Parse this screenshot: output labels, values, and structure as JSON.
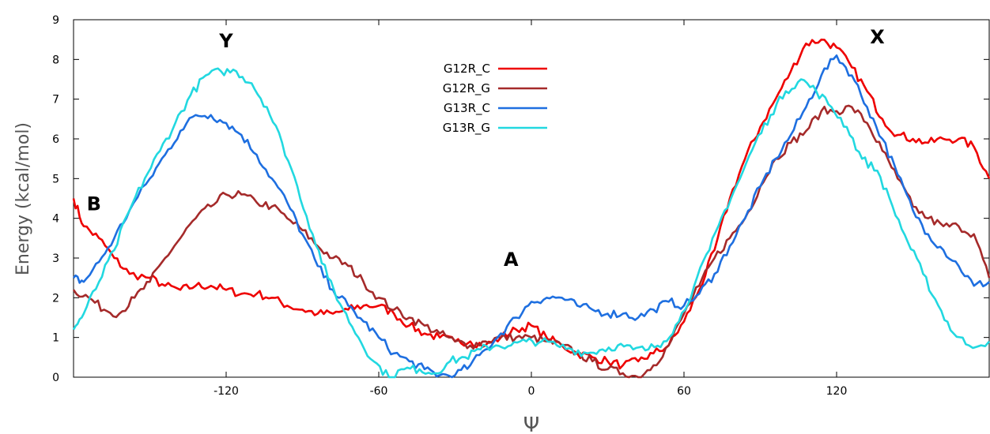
{
  "chart_data": {
    "type": "line",
    "xlabel": "Ψ",
    "ylabel": "Energy (kcal/mol)",
    "xlim": [
      -180,
      180
    ],
    "ylim": [
      0,
      9
    ],
    "xticks": [
      -120,
      -60,
      0,
      60,
      120
    ],
    "xtick_labels": [
      "-120",
      "-60",
      "0",
      "60",
      "120"
    ],
    "yticks": [
      0,
      1,
      2,
      3,
      4,
      5,
      6,
      7,
      8,
      9
    ],
    "ytick_labels": [
      "0",
      "1",
      "2",
      "3",
      "4",
      "5",
      "6",
      "7",
      "8",
      "9"
    ],
    "grid": false,
    "legend_position": "top-center",
    "annotations": [
      {
        "text": "Y",
        "x": -120,
        "y": 8.3
      },
      {
        "text": "X",
        "x": 136,
        "y": 8.4
      },
      {
        "text": "B",
        "x": -172,
        "y": 4.2
      },
      {
        "text": "A",
        "x": -8,
        "y": 2.8
      }
    ],
    "series": [
      {
        "name": "G12R_C",
        "color": "#ee0000",
        "x": [
          -180,
          -176,
          -170,
          -164,
          -158,
          -150,
          -144,
          -138,
          -132,
          -126,
          -120,
          -114,
          -108,
          -102,
          -96,
          -90,
          -84,
          -78,
          -72,
          -66,
          -60,
          -54,
          -48,
          -42,
          -36,
          -30,
          -24,
          -18,
          -12,
          -6,
          0,
          6,
          12,
          18,
          24,
          30,
          36,
          42,
          48,
          54,
          60,
          66,
          72,
          78,
          84,
          90,
          96,
          102,
          108,
          114,
          120,
          126,
          132,
          138,
          144,
          150,
          156,
          162,
          168,
          174,
          180
        ],
        "y": [
          4.5,
          3.8,
          3.5,
          3.0,
          2.6,
          2.5,
          2.3,
          2.2,
          2.3,
          2.3,
          2.2,
          2.1,
          2.1,
          2.0,
          1.8,
          1.7,
          1.6,
          1.6,
          1.7,
          1.8,
          1.8,
          1.6,
          1.3,
          1.1,
          1.0,
          0.9,
          0.9,
          0.8,
          1.0,
          1.2,
          1.3,
          1.0,
          0.8,
          0.6,
          0.5,
          0.4,
          0.3,
          0.4,
          0.6,
          0.8,
          1.4,
          2.2,
          3.2,
          4.5,
          5.5,
          6.3,
          7.0,
          7.7,
          8.4,
          8.5,
          8.3,
          7.8,
          7.2,
          6.5,
          6.1,
          6.0,
          5.9,
          6.0,
          6.0,
          5.8,
          5.0
        ]
      },
      {
        "name": "G12R_G",
        "color": "#a52a2a",
        "x": [
          -180,
          -174,
          -168,
          -162,
          -156,
          -150,
          -144,
          -138,
          -132,
          -126,
          -120,
          -114,
          -108,
          -102,
          -96,
          -90,
          -84,
          -78,
          -72,
          -66,
          -60,
          -54,
          -48,
          -42,
          -36,
          -30,
          -24,
          -18,
          -12,
          -6,
          0,
          6,
          12,
          18,
          24,
          30,
          36,
          42,
          48,
          54,
          60,
          66,
          72,
          78,
          84,
          90,
          96,
          102,
          108,
          114,
          120,
          126,
          132,
          138,
          144,
          150,
          156,
          162,
          168,
          174,
          180
        ],
        "y": [
          2.2,
          2.0,
          1.7,
          1.6,
          2.0,
          2.4,
          3.0,
          3.5,
          4.0,
          4.3,
          4.6,
          4.6,
          4.4,
          4.3,
          4.0,
          3.7,
          3.3,
          3.0,
          2.8,
          2.4,
          2.0,
          1.7,
          1.5,
          1.3,
          1.1,
          0.9,
          0.8,
          0.9,
          1.0,
          1.0,
          1.0,
          0.9,
          0.8,
          0.6,
          0.4,
          0.2,
          0.1,
          0.0,
          0.3,
          0.8,
          1.6,
          2.3,
          3.0,
          3.5,
          4.0,
          4.8,
          5.5,
          5.9,
          6.2,
          6.7,
          6.7,
          6.8,
          6.4,
          5.7,
          5.0,
          4.3,
          4.0,
          3.8,
          3.8,
          3.6,
          2.5
        ]
      },
      {
        "name": "G13R_C",
        "color": "#1e6fe0",
        "x": [
          -180,
          -176,
          -170,
          -164,
          -158,
          -150,
          -144,
          -138,
          -132,
          -126,
          -120,
          -114,
          -108,
          -102,
          -96,
          -90,
          -84,
          -78,
          -72,
          -66,
          -60,
          -54,
          -48,
          -42,
          -36,
          -30,
          -24,
          -18,
          -12,
          -6,
          0,
          6,
          12,
          18,
          24,
          30,
          36,
          42,
          48,
          54,
          60,
          66,
          72,
          78,
          84,
          90,
          96,
          102,
          108,
          114,
          120,
          126,
          132,
          138,
          144,
          150,
          156,
          162,
          168,
          174,
          180
        ],
        "y": [
          2.5,
          2.4,
          2.9,
          3.5,
          4.2,
          5.0,
          5.6,
          6.2,
          6.6,
          6.6,
          6.4,
          6.1,
          5.6,
          5.0,
          4.4,
          3.6,
          2.8,
          2.2,
          1.8,
          1.4,
          1.0,
          0.6,
          0.4,
          0.2,
          0.05,
          0.05,
          0.3,
          0.7,
          1.1,
          1.5,
          1.9,
          2.0,
          2.0,
          1.8,
          1.7,
          1.6,
          1.6,
          1.5,
          1.7,
          1.9,
          1.8,
          2.1,
          2.6,
          3.3,
          4.0,
          4.8,
          5.5,
          6.1,
          6.8,
          7.6,
          8.1,
          7.6,
          6.8,
          6.0,
          5.1,
          4.2,
          3.6,
          3.2,
          2.8,
          2.3,
          2.4
        ]
      },
      {
        "name": "G13R_G",
        "color": "#22d8e0",
        "x": [
          -180,
          -176,
          -170,
          -164,
          -158,
          -152,
          -146,
          -140,
          -134,
          -128,
          -122,
          -116,
          -110,
          -104,
          -98,
          -92,
          -86,
          -80,
          -74,
          -68,
          -62,
          -56,
          -50,
          -44,
          -38,
          -32,
          -26,
          -20,
          -14,
          -8,
          -2,
          4,
          10,
          16,
          22,
          28,
          34,
          40,
          46,
          52,
          58,
          64,
          70,
          76,
          82,
          88,
          94,
          100,
          106,
          112,
          118,
          124,
          130,
          136,
          142,
          148,
          154,
          160,
          166,
          172,
          180
        ],
        "y": [
          1.2,
          1.6,
          2.4,
          3.2,
          4.2,
          5.0,
          5.7,
          6.4,
          7.1,
          7.6,
          7.7,
          7.7,
          7.4,
          6.8,
          5.9,
          4.8,
          3.6,
          2.5,
          1.7,
          1.0,
          0.4,
          0.0,
          0.2,
          0.2,
          0.1,
          0.4,
          0.5,
          0.7,
          0.8,
          0.8,
          0.9,
          0.9,
          0.8,
          0.7,
          0.6,
          0.7,
          0.8,
          0.7,
          0.7,
          0.9,
          1.4,
          2.3,
          3.2,
          4.2,
          5.0,
          5.9,
          6.6,
          7.2,
          7.5,
          7.2,
          6.8,
          6.3,
          5.5,
          5.2,
          4.3,
          3.4,
          2.6,
          1.8,
          1.1,
          0.8,
          0.9
        ]
      }
    ]
  }
}
